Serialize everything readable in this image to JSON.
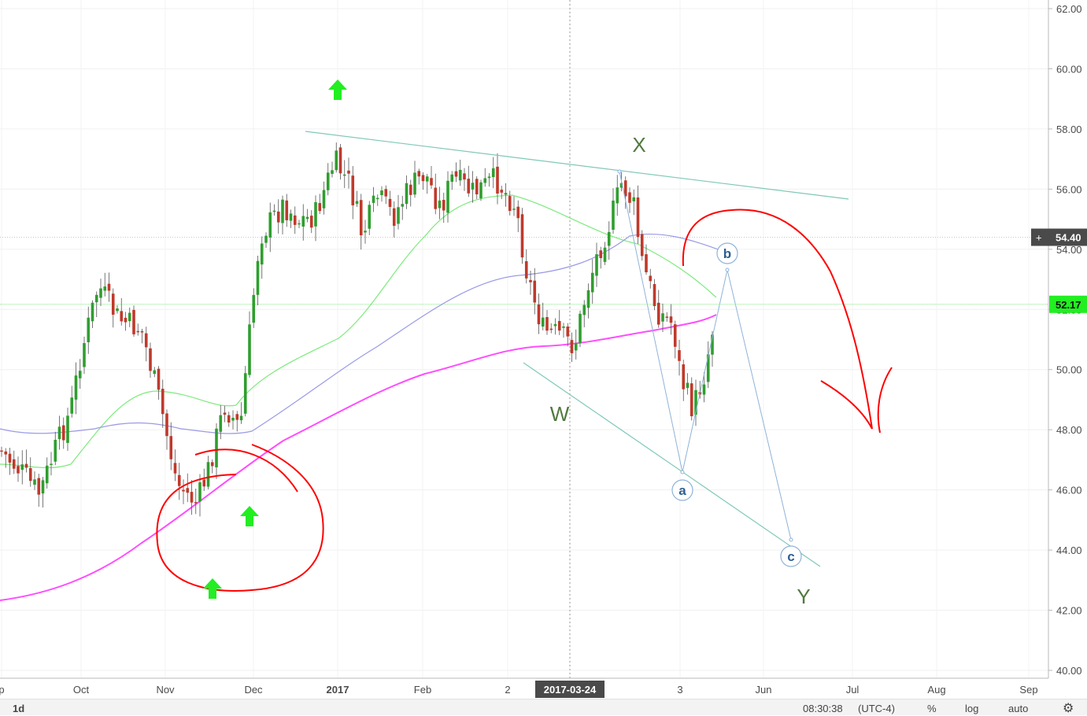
{
  "chart_data": {
    "type": "candlestick",
    "y_axis": {
      "ticks": [
        "62.00",
        "60.00",
        "58.00",
        "56.00",
        "54.00",
        "52.00",
        "50.00",
        "48.00",
        "46.00",
        "44.00",
        "42.00",
        "40.00"
      ],
      "ylim": [
        40,
        62
      ],
      "position": "right"
    },
    "x_axis": {
      "ticks": [
        "p",
        "Oct",
        "Nov",
        "Dec",
        "2017",
        "Feb",
        "2",
        "2017-03-24",
        "3",
        "Jun",
        "Jul",
        "Aug",
        "Sep"
      ],
      "highlighted_tick": "2017-03-24"
    },
    "price_labels": [
      {
        "text": "54.40",
        "value": 54.4,
        "style": "dark",
        "prefix": "+"
      },
      {
        "text": "52.17",
        "value": 52.17,
        "style": "green"
      }
    ],
    "wave_labels": [
      "X",
      "W",
      "Y"
    ],
    "subwave_labels": [
      "a",
      "b",
      "c"
    ],
    "moving_averages": [
      {
        "color": "#7dea7d"
      },
      {
        "color": "#9a9ae8"
      },
      {
        "color": "#ff4dff"
      }
    ],
    "colors": {
      "up": "#2f9e2f",
      "down": "#c0392b",
      "annotation": "#ff0000",
      "arrow": "#22ee22",
      "trendline": "#7fc8b8",
      "wave_path": "#8fb3d9"
    }
  },
  "bottom_bar": {
    "interval": "1d",
    "time": "08:30:38",
    "timezone": "(UTC-4)",
    "percent": "%",
    "log": "log",
    "auto": "auto"
  }
}
